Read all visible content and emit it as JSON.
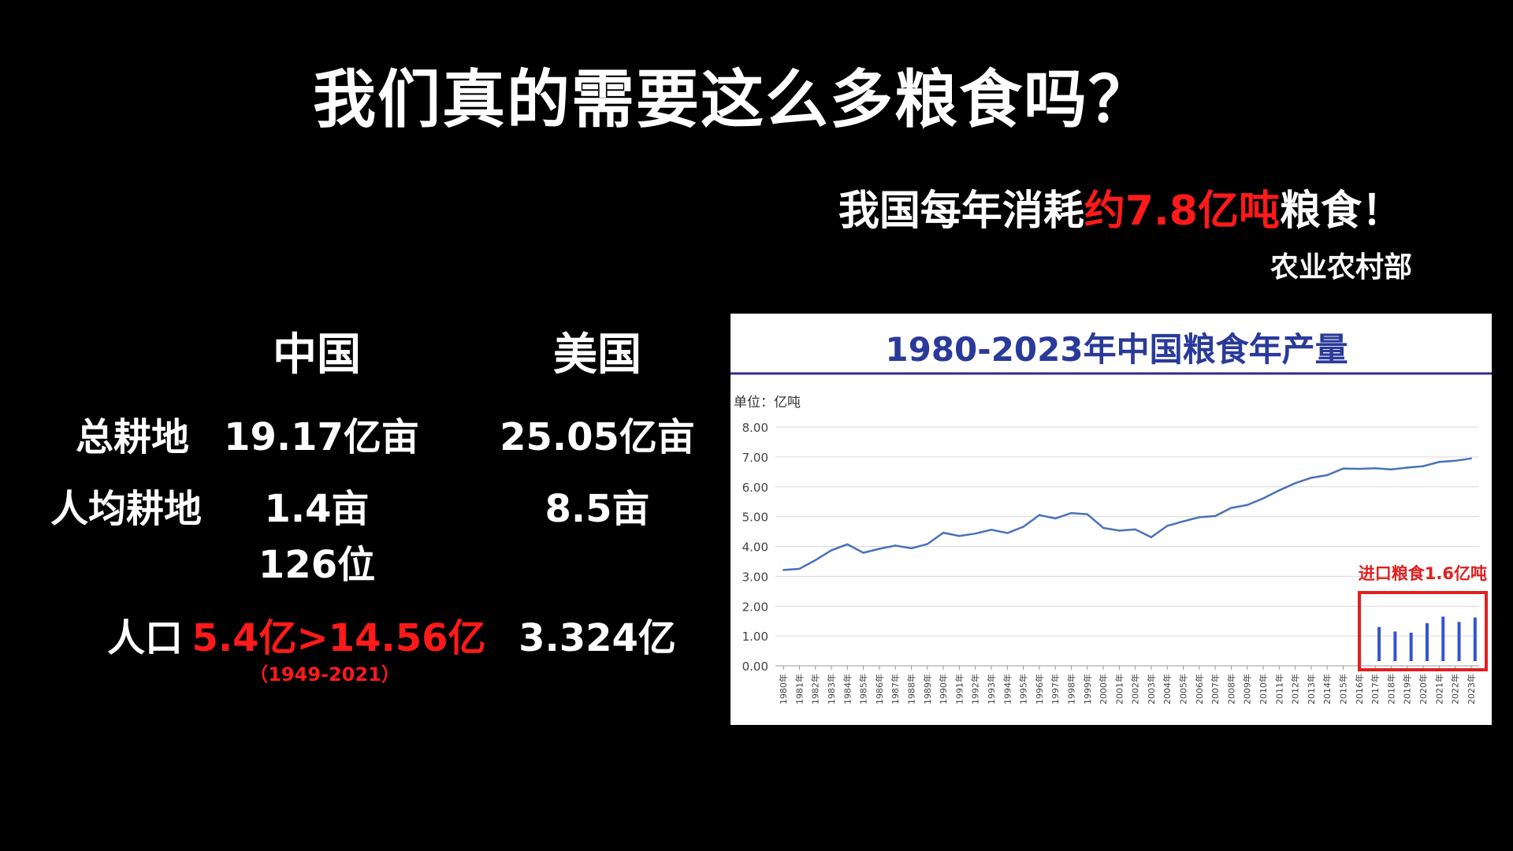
{
  "slide": {
    "title": "我们真的需要这么多粮食吗？",
    "headline_pre": "我国每年消耗",
    "headline_red": "约7.8亿吨",
    "headline_post": "粮食！",
    "source": "农业农村部"
  },
  "table": {
    "columns": [
      "中国",
      "美国"
    ],
    "rows": [
      {
        "label": "总耕地",
        "china": "19.17亿亩",
        "usa": "25.05亿亩"
      },
      {
        "label": "人均耕地",
        "china": "1.4亩",
        "china_extra": "126位",
        "usa": "8.5亩"
      },
      {
        "label": "人口",
        "china": "5.4亿>14.56亿",
        "china_note": "（1949-2021）",
        "usa": "3.324亿"
      }
    ]
  },
  "chart_data": {
    "type": "line",
    "title": "1980-2023年中国粮食年产量",
    "unit_label": "单位：亿吨",
    "ylim": [
      0,
      8
    ],
    "yticks": [
      "0.00",
      "1.00",
      "2.00",
      "3.00",
      "4.00",
      "5.00",
      "6.00",
      "7.00",
      "8.00"
    ],
    "grid": true,
    "x": [
      "1980年",
      "1981年",
      "1982年",
      "1983年",
      "1984年",
      "1985年",
      "1986年",
      "1987年",
      "1988年",
      "1989年",
      "1990年",
      "1991年",
      "1992年",
      "1993年",
      "1994年",
      "1995年",
      "1996年",
      "1997年",
      "1998年",
      "1999年",
      "2000年",
      "2001年",
      "2002年",
      "2003年",
      "2004年",
      "2005年",
      "2006年",
      "2007年",
      "2008年",
      "2009年",
      "2010年",
      "2011年",
      "2012年",
      "2013年",
      "2014年",
      "2015年",
      "2016年",
      "2017年",
      "2018年",
      "2019年",
      "2020年",
      "2021年",
      "2022年",
      "2023年"
    ],
    "series": [
      {
        "type": "line",
        "color": "#4a72b8",
        "values": [
          3.21,
          3.25,
          3.54,
          3.87,
          4.07,
          3.79,
          3.92,
          4.03,
          3.94,
          4.08,
          4.46,
          4.35,
          4.43,
          4.56,
          4.45,
          4.66,
          5.05,
          4.94,
          5.12,
          5.08,
          4.62,
          4.53,
          4.57,
          4.31,
          4.69,
          4.84,
          4.98,
          5.02,
          5.29,
          5.39,
          5.61,
          5.88,
          6.12,
          6.3,
          6.39,
          6.61,
          6.6,
          6.62,
          6.58,
          6.64,
          6.69,
          6.83,
          6.87,
          6.95
        ]
      },
      {
        "type": "bar",
        "color": "#3355cc",
        "x": [
          "2017年",
          "2018年",
          "2019年",
          "2020年",
          "2021年",
          "2022年",
          "2023年"
        ],
        "values": [
          1.3,
          1.15,
          1.11,
          1.43,
          1.65,
          1.47,
          1.62
        ]
      }
    ],
    "annotation": "进口粮食1.6亿吨",
    "colors": {
      "title": "#2a3a9a",
      "highlight": "#e02020"
    }
  }
}
